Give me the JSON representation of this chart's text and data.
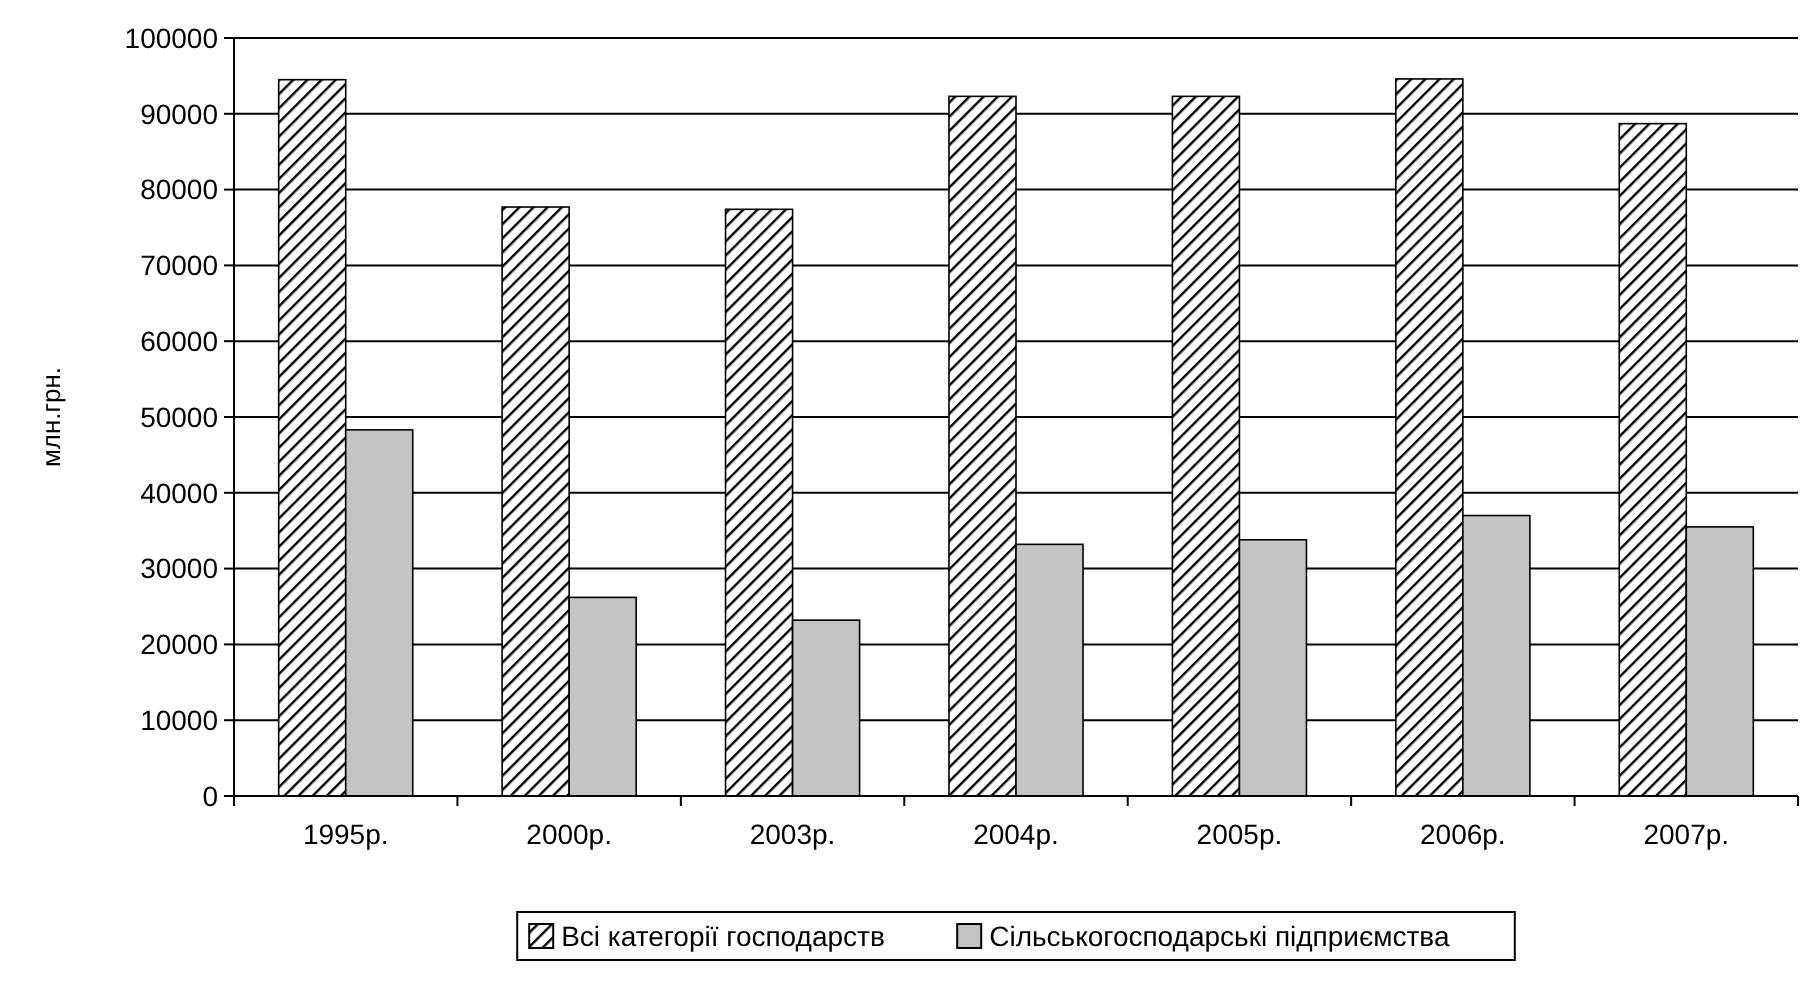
{
  "chart_data": {
    "type": "bar",
    "ylabel": "млн.грн.",
    "categories": [
      "1995р.",
      "2000р.",
      "2003р.",
      "2004р.",
      "2005р.",
      "2006р.",
      "2007р."
    ],
    "series": [
      {
        "name": "Всі категорії господарств",
        "color": "#000000",
        "values": [
          94500,
          77700,
          77400,
          92300,
          92300,
          94600,
          88700
        ]
      },
      {
        "name": "Сільськогосподарські підприємства",
        "color": "#c4c4c4",
        "values": [
          48300,
          26200,
          23200,
          33200,
          33800,
          37000,
          35500
        ]
      }
    ],
    "ylim": [
      0,
      100000
    ],
    "yticks": [
      0,
      10000,
      20000,
      30000,
      40000,
      50000,
      60000,
      70000,
      80000,
      90000,
      100000
    ],
    "grid": "y",
    "legend": "bottom"
  }
}
